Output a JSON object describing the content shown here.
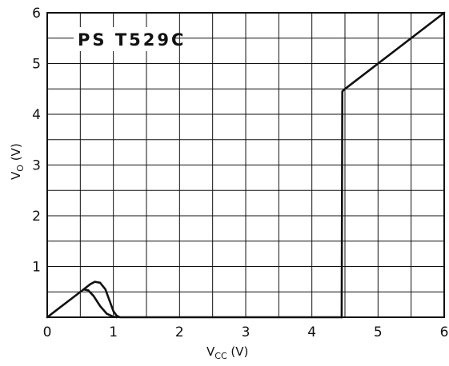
{
  "chart_data": {
    "type": "line",
    "title": "",
    "annotation": "PS T529C",
    "xlabel": {
      "main": "V",
      "sub": "CC",
      "unit": " (V)"
    },
    "ylabel": {
      "main": "V",
      "sub": "O",
      "unit": " (V)"
    },
    "xlim": [
      0,
      6
    ],
    "ylim": [
      0,
      6
    ],
    "x_tick_labels": [
      "0",
      "1",
      "2",
      "3",
      "4",
      "5",
      "6"
    ],
    "y_tick_labels": [
      "1",
      "2",
      "3",
      "4",
      "5",
      "6"
    ],
    "grid": true,
    "grid_step": 0.5,
    "series": [
      {
        "x": [
          0,
          0.2,
          0.4,
          0.55,
          0.65,
          0.72,
          0.8,
          0.88,
          0.95,
          1.0,
          1.05,
          1.1,
          1.2,
          2.0,
          3.0,
          4.0,
          4.45
        ],
        "y": [
          0,
          0.2,
          0.4,
          0.55,
          0.65,
          0.7,
          0.68,
          0.55,
          0.3,
          0.12,
          0.03,
          0.0,
          0.0,
          0.0,
          0.0,
          0.0,
          0.0
        ]
      },
      {
        "x": [
          0.55,
          0.62,
          0.7,
          0.8,
          0.9,
          1.0,
          1.05
        ],
        "y": [
          0.55,
          0.53,
          0.42,
          0.22,
          0.07,
          0.01,
          0.0
        ]
      },
      {
        "x": [
          4.45,
          4.46,
          4.5,
          6.0
        ],
        "y": [
          0.0,
          4.45,
          4.5,
          6.0
        ]
      }
    ]
  }
}
